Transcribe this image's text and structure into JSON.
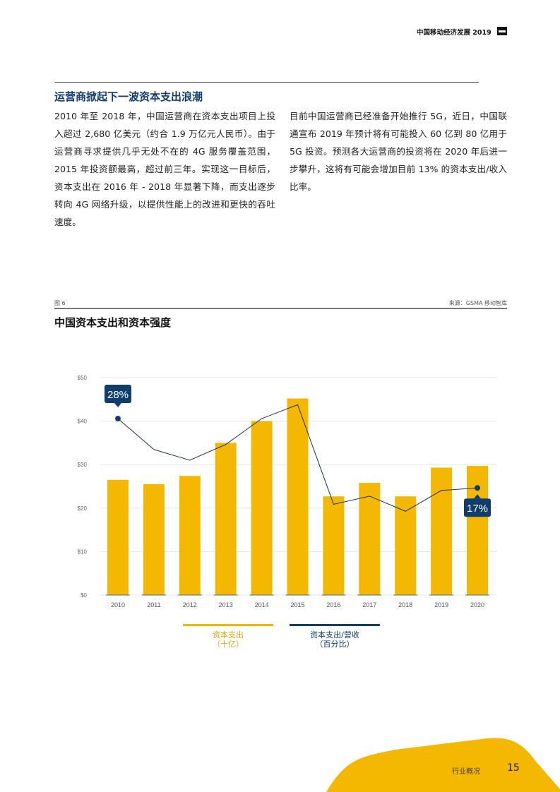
{
  "header": {
    "title": "中国移动经济发展 2019",
    "logo": "gsma-logo-icon"
  },
  "section": {
    "title": "运营商掀起下一波资本支出浪潮",
    "paragraphs": [
      "2010 年至 2018 年，中国运营商在资本支出项目上投入超过 2,680 亿美元（约合 1.9 万亿元人民币）。由于运营商寻求提供几乎无处不在的 4G 服务覆盖范围，2015 年投资额最高，超过前三年。实现这一目标后，资本支出在 2016 年 - 2018 年显著下降，而支出逐步转向 4G 网络升级，以提供性能上的改进和更快的吞吐速度。",
      "目前中国运营商已经准备开始推行 5G，近日，中国联通宣布 2019 年预计将有可能投入 60 亿到 80 亿用于 5G 投资。预测各大运营商的投资将在 2020 年后进一步攀升，这将有可能会增加目前 13% 的资本支出/收入比率。"
    ]
  },
  "figure": {
    "label": "图 6",
    "source": "来源：GSMA 移动智库",
    "title": "中国资本支出和资本强度"
  },
  "chart_data": {
    "type": "bar+line",
    "categories": [
      "2010",
      "2011",
      "2012",
      "2013",
      "2014",
      "2015",
      "2016",
      "2017",
      "2018",
      "2019",
      "2020"
    ],
    "y_ticks": [
      "$0",
      "$10",
      "$20",
      "$30",
      "$40",
      "$50"
    ],
    "ylim": [
      0,
      50
    ],
    "y2lim": [
      0,
      34.5
    ],
    "grid": true,
    "legend_placement": "bottom",
    "series": [
      {
        "name": "资本支出\n（十亿）",
        "type": "bar",
        "color": "#f5b800",
        "values": [
          26.5,
          25.5,
          27.4,
          35,
          40,
          45.2,
          22.7,
          25.8,
          22.7,
          29.3,
          29.7
        ]
      },
      {
        "name": "资本支出/营收\n（百分比）",
        "type": "line",
        "axis": "secondary",
        "color": "#0f3d6e",
        "values": [
          28,
          23.1,
          21.4,
          23.9,
          28,
          30.2,
          14.4,
          15.7,
          13.3,
          16.6,
          17
        ]
      }
    ],
    "annotations": [
      {
        "category": "2010",
        "text": "28%"
      },
      {
        "category": "2020",
        "text": "17%"
      }
    ]
  },
  "legend": [
    {
      "line1": "资本支出",
      "line2": "（十亿）",
      "color": "#f5b800"
    },
    {
      "line1": "资本支出/营收",
      "line2": "（百分比）",
      "color": "#0f3d6e"
    }
  ],
  "footer": {
    "section": "行业概况",
    "page": "15"
  },
  "colors": {
    "accent": "#f5b800",
    "brand": "#0f3d6e"
  }
}
